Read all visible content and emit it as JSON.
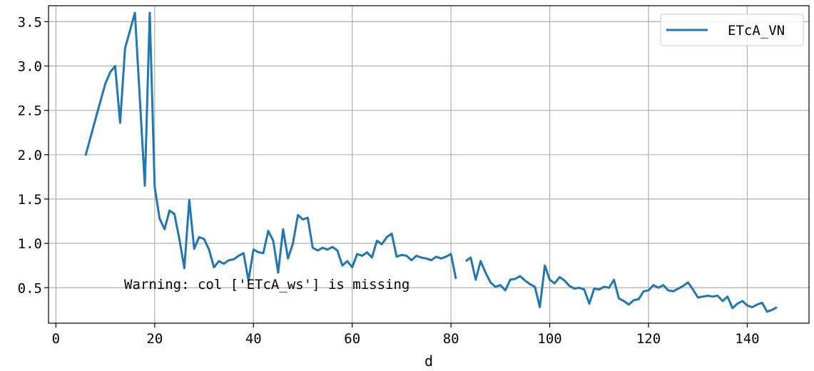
{
  "chart_data": {
    "type": "line",
    "title": "",
    "xlabel": "d",
    "ylabel": "",
    "xlim": [
      -1.5,
      152.5
    ],
    "ylim": [
      0.1,
      3.68
    ],
    "xticks": [
      "0",
      "20",
      "40",
      "60",
      "80",
      "100",
      "120",
      "140"
    ],
    "yticks": [
      "0.5",
      "1.0",
      "1.5",
      "2.0",
      "2.5",
      "3.0",
      "3.5"
    ],
    "grid": true,
    "legend_position": "top-right",
    "series": [
      {
        "name": "ETcA_VN",
        "color": "#1f77b4",
        "segments": [
          {
            "x": [
              6,
              8,
              10,
              11,
              12,
              13,
              14,
              16,
              18,
              19,
              20,
              21,
              22,
              23,
              24,
              25,
              26,
              27,
              28,
              29,
              30,
              31,
              32,
              33,
              34,
              35,
              36,
              37,
              38,
              39,
              40,
              41,
              42,
              43,
              44,
              45,
              46,
              47,
              48,
              49,
              50,
              51,
              52,
              53,
              54,
              55,
              56,
              57,
              58,
              59,
              60,
              61,
              62,
              63,
              64,
              65,
              66,
              67,
              68,
              69,
              70,
              71,
              72,
              73,
              74,
              75,
              76,
              77,
              78,
              79,
              80,
              81
            ],
            "y": [
              1.99,
              2.4,
              2.8,
              2.93,
              3.0,
              2.36,
              3.2,
              3.6,
              1.65,
              3.6,
              1.64,
              1.28,
              1.16,
              1.37,
              1.33,
              1.05,
              0.72,
              1.49,
              0.94,
              1.07,
              1.05,
              0.93,
              0.73,
              0.8,
              0.77,
              0.81,
              0.82,
              0.86,
              0.89,
              0.58,
              0.93,
              0.9,
              0.89,
              1.14,
              1.03,
              0.67,
              1.16,
              0.83,
              1.0,
              1.32,
              1.27,
              1.29,
              0.95,
              0.92,
              0.95,
              0.93,
              0.96,
              0.92,
              0.75,
              0.8,
              0.73,
              0.88,
              0.86,
              0.9,
              0.84,
              1.03,
              0.99,
              1.07,
              1.11,
              0.85,
              0.87,
              0.86,
              0.81,
              0.86,
              0.84,
              0.83,
              0.81,
              0.85,
              0.83,
              0.85,
              0.88,
              0.6
            ]
          },
          {
            "x": [
              83,
              84,
              85,
              86,
              87,
              88,
              89,
              90,
              91,
              92,
              93,
              94,
              95,
              96,
              97,
              98,
              99,
              100,
              101,
              102,
              103,
              104,
              105,
              106,
              107,
              108,
              109,
              110,
              111,
              112,
              113,
              114,
              115,
              116,
              117,
              118,
              119,
              120,
              121,
              122,
              123,
              124,
              125,
              126,
              127,
              128,
              129,
              130,
              131,
              132,
              133,
              134,
              135,
              136,
              137,
              138,
              139,
              140,
              141,
              142,
              143,
              144,
              145,
              146
            ],
            "y": [
              0.8,
              0.84,
              0.59,
              0.8,
              0.67,
              0.56,
              0.51,
              0.53,
              0.47,
              0.59,
              0.6,
              0.63,
              0.58,
              0.54,
              0.51,
              0.28,
              0.75,
              0.59,
              0.55,
              0.62,
              0.58,
              0.52,
              0.49,
              0.5,
              0.48,
              0.32,
              0.49,
              0.48,
              0.51,
              0.5,
              0.59,
              0.38,
              0.35,
              0.31,
              0.36,
              0.37,
              0.46,
              0.47,
              0.53,
              0.5,
              0.53,
              0.47,
              0.46,
              0.49,
              0.52,
              0.56,
              0.48,
              0.39,
              0.4,
              0.41,
              0.4,
              0.41,
              0.35,
              0.4,
              0.27,
              0.32,
              0.35,
              0.3,
              0.28,
              0.31,
              0.33,
              0.23,
              0.25,
              0.28
            ]
          }
        ]
      }
    ],
    "annotation": "Warning: col ['ETcA_ws'] is missing"
  }
}
